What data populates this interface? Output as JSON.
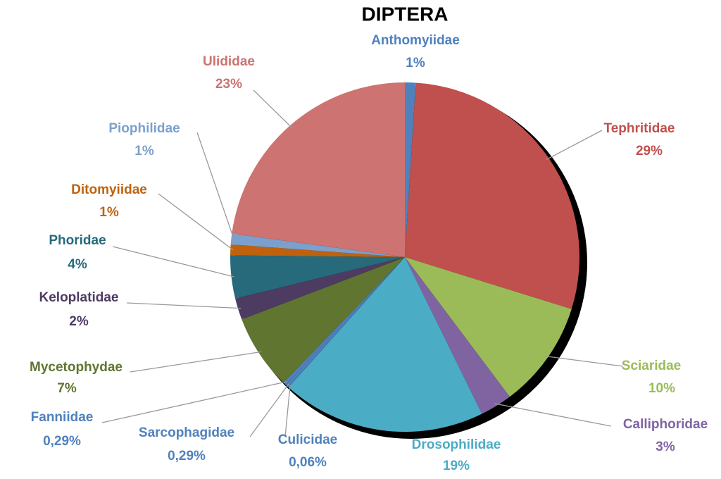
{
  "chart_data": {
    "type": "pie",
    "title": "DIPTERA",
    "categories": [
      "Anthomyiidae",
      "Tephritidae",
      "Sciaridae",
      "Calliphoridae",
      "Drosophilidae",
      "Culicidae",
      "Sarcophagidae",
      "Fanniidae",
      "Mycetophydae",
      "Keloplatidae",
      "Phoridae",
      "Ditomyiidae",
      "Piophilidae",
      "Ulididae"
    ],
    "values": [
      1,
      29,
      10,
      3,
      19,
      0.06,
      0.29,
      0.29,
      7,
      2,
      4,
      1,
      1,
      23
    ],
    "value_labels": [
      "1%",
      "29%",
      "10%",
      "3%",
      "19%",
      "0,06%",
      "0,29%",
      "0,29%",
      "7%",
      "2%",
      "4%",
      "1%",
      "1%",
      "23%"
    ],
    "colors": [
      "#4f81bd",
      "#c0504d",
      "#9bbb59",
      "#8064a2",
      "#4bacc6",
      "#4f81bd",
      "#4f81bd",
      "#4f81bd",
      "#5f7530",
      "#4d3b62",
      "#276a7c",
      "#c0620d",
      "#7ba0cd",
      "#cd7371"
    ]
  }
}
